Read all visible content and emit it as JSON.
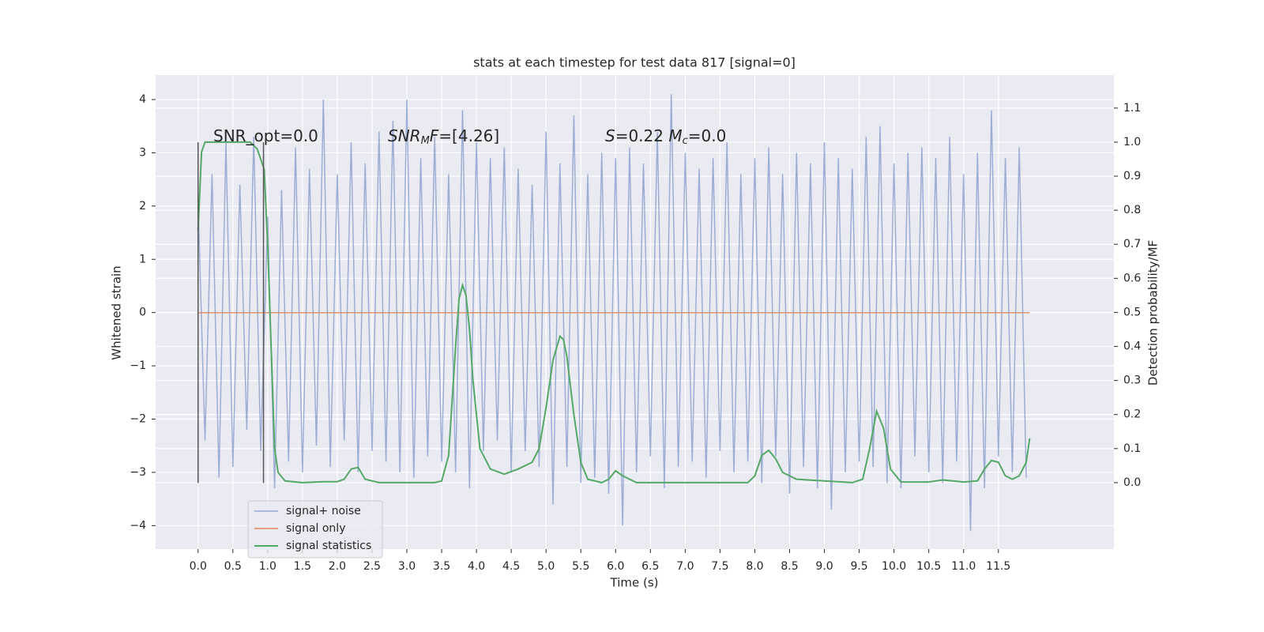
{
  "chart_data": {
    "type": "line",
    "title": "stats at each timestep for test data 817 [signal=0]",
    "xlabel": "Time (s)",
    "ylabel": "Whitened strain",
    "y2label": "Detection probability/MF",
    "xlim": [
      -0.61,
      13.16
    ],
    "ylim": [
      -4.44,
      4.46
    ],
    "y2lim": [
      -0.195,
      1.197
    ],
    "xticks": [
      {
        "value": 0,
        "label": "0.0"
      },
      0.5,
      {
        "value": 1,
        "label": "1.0"
      },
      1.5,
      {
        "value": 2,
        "label": "2.0"
      },
      2.5,
      {
        "value": 3,
        "label": "3.0"
      },
      3.5,
      {
        "value": 4,
        "label": "4.0"
      },
      4.5,
      {
        "value": 5,
        "label": "5.0"
      },
      5.5,
      {
        "value": 6,
        "label": "6.0"
      },
      6.5,
      {
        "value": 7,
        "label": "7.0"
      },
      7.5,
      {
        "value": 8,
        "label": "8.0"
      },
      8.5,
      {
        "value": 9,
        "label": "9.0"
      },
      9.5,
      {
        "value": 10,
        "label": "10.0"
      },
      10.5,
      {
        "value": 11,
        "label": "11.0"
      },
      11.5
    ],
    "yticks": [
      {
        "value": -4,
        "label": "−4"
      },
      {
        "value": -3,
        "label": "−3"
      },
      {
        "value": -2,
        "label": "−2"
      },
      {
        "value": -1,
        "label": "−1"
      },
      0,
      1,
      2,
      3,
      4
    ],
    "y2ticks": [
      {
        "value": 0,
        "label": "0.0"
      },
      0.1,
      0.2,
      0.3,
      0.4,
      0.5,
      0.6,
      0.7,
      0.8,
      0.9,
      {
        "value": 1,
        "label": "1.0"
      },
      1.1
    ],
    "grid": true,
    "legend": "lower left",
    "vlines": {
      "x": [
        0,
        0.94
      ],
      "y": [
        -3.2,
        3.2
      ],
      "color": "#555555"
    },
    "annotations": [
      [
        {
          "text": "SNR_opt=0.0",
          "style": "normal"
        }
      ],
      [
        {
          "text": "SNR",
          "style": "italic"
        },
        {
          "text": "M",
          "style": "sub"
        },
        {
          "text": "F",
          "style": "italic"
        },
        {
          "text": "=[4.26]",
          "style": "normal"
        }
      ],
      [
        {
          "text": "S",
          "style": "italic"
        },
        {
          "text": "=0.22   ",
          "style": "normal"
        },
        {
          "text": "M",
          "style": "italic"
        },
        {
          "text": "c",
          "style": "sub"
        },
        {
          "text": "=0.0",
          "style": "normal"
        }
      ]
    ],
    "series": [
      {
        "name": "signal+ noise",
        "color": "#8fa3cf",
        "x": [
          0,
          0.1,
          0.2,
          0.3,
          0.4,
          0.5,
          0.6,
          0.7,
          0.8,
          0.9,
          1,
          1.1,
          1.2,
          1.3,
          1.4,
          1.5,
          1.6,
          1.7,
          1.8,
          1.9,
          2,
          2.1,
          2.2,
          2.3,
          2.4,
          2.5,
          2.6,
          2.7,
          2.8,
          2.9,
          3,
          3.1,
          3.2,
          3.3,
          3.4,
          3.5,
          3.6,
          3.7,
          3.8,
          3.9,
          4,
          4.1,
          4.2,
          4.3,
          4.4,
          4.5,
          4.6,
          4.7,
          4.8,
          4.9,
          5,
          5.1,
          5.2,
          5.3,
          5.4,
          5.5,
          5.6,
          5.7,
          5.8,
          5.9,
          6,
          6.1,
          6.2,
          6.3,
          6.4,
          6.5,
          6.6,
          6.7,
          6.8,
          6.9,
          7,
          7.1,
          7.2,
          7.3,
          7.4,
          7.5,
          7.6,
          7.7,
          7.8,
          7.9,
          8,
          8.1,
          8.2,
          8.3,
          8.4,
          8.5,
          8.6,
          8.7,
          8.8,
          8.9,
          9,
          9.1,
          9.2,
          9.3,
          9.4,
          9.5,
          9.6,
          9.7,
          9.8,
          9.9,
          10,
          10.1,
          10.2,
          10.3,
          10.4,
          10.5,
          10.6,
          10.7,
          10.8,
          10.9,
          11,
          11.1,
          11.2,
          11.3,
          11.4,
          11.5,
          11.6,
          11.7,
          11.8,
          11.9
        ],
        "values": [
          2.1,
          -2.4,
          2.6,
          -3.1,
          3.2,
          -2.9,
          2.4,
          -2.2,
          3.3,
          -2.6,
          1.8,
          -3.3,
          2.3,
          -2.8,
          3.1,
          -3.0,
          2.7,
          -2.5,
          4.0,
          -2.9,
          2.6,
          -2.4,
          3.2,
          -3.0,
          2.8,
          -2.6,
          3.4,
          -2.8,
          3.6,
          -3.0,
          4.0,
          -3.1,
          2.9,
          -2.7,
          3.3,
          -2.8,
          2.6,
          -3.0,
          3.8,
          -3.3,
          3.2,
          -2.6,
          2.9,
          -2.4,
          3.1,
          -3.0,
          2.7,
          -2.6,
          2.4,
          -2.9,
          3.4,
          -3.6,
          2.8,
          -2.9,
          3.7,
          -3.2,
          2.6,
          -3.1,
          3.0,
          -3.4,
          2.9,
          -4.0,
          3.1,
          -3.0,
          2.8,
          -2.7,
          3.4,
          -3.3,
          4.1,
          -2.9,
          3.0,
          -2.8,
          2.7,
          -3.1,
          2.9,
          -2.6,
          3.2,
          -3.0,
          2.6,
          -2.8,
          2.9,
          -3.2,
          3.1,
          -2.7,
          2.6,
          -3.4,
          3.0,
          -2.9,
          2.8,
          -3.3,
          3.2,
          -3.7,
          2.9,
          -3.0,
          2.7,
          -2.8,
          3.3,
          -2.9,
          3.5,
          -3.2,
          2.8,
          -3.3,
          3.0,
          -2.7,
          3.1,
          -3.0,
          2.9,
          -3.2,
          3.3,
          -2.8,
          2.6,
          -4.1,
          3.0,
          -3.3,
          3.8,
          -2.7,
          2.9,
          -3.0,
          3.1,
          -3.1
        ]
      },
      {
        "name": "signal only",
        "color": "#dd8452",
        "x": [
          0,
          11.95
        ],
        "values": [
          0,
          0
        ]
      },
      {
        "name": "signal statistics",
        "color": "#55a868",
        "axis": "y2",
        "x": [
          0,
          0.05,
          0.1,
          0.2,
          0.4,
          0.6,
          0.75,
          0.85,
          0.95,
          1.0,
          1.05,
          1.1,
          1.15,
          1.25,
          1.5,
          1.8,
          2.0,
          2.1,
          2.2,
          2.3,
          2.4,
          2.6,
          3.0,
          3.4,
          3.5,
          3.6,
          3.7,
          3.75,
          3.8,
          3.85,
          3.9,
          3.95,
          4.05,
          4.2,
          4.4,
          4.6,
          4.8,
          4.9,
          5.0,
          5.1,
          5.2,
          5.25,
          5.3,
          5.4,
          5.5,
          5.6,
          5.8,
          5.9,
          6.0,
          6.1,
          6.3,
          7.0,
          7.5,
          7.9,
          8.0,
          8.1,
          8.2,
          8.3,
          8.4,
          8.6,
          9.0,
          9.4,
          9.55,
          9.65,
          9.75,
          9.85,
          9.95,
          10.1,
          10.5,
          10.7,
          11.0,
          11.2,
          11.3,
          11.4,
          11.5,
          11.6,
          11.7,
          11.8,
          11.9,
          11.95
        ],
        "values": [
          0.74,
          0.97,
          1.0,
          1.0,
          1.0,
          1.0,
          1.0,
          0.98,
          0.92,
          0.7,
          0.4,
          0.1,
          0.03,
          0.005,
          0,
          0.003,
          0.003,
          0.01,
          0.04,
          0.045,
          0.01,
          0,
          0,
          0,
          0.005,
          0.08,
          0.4,
          0.54,
          0.58,
          0.55,
          0.45,
          0.3,
          0.1,
          0.04,
          0.025,
          0.04,
          0.06,
          0.1,
          0.22,
          0.36,
          0.43,
          0.42,
          0.37,
          0.2,
          0.06,
          0.01,
          0,
          0.01,
          0.035,
          0.02,
          0,
          0,
          0,
          0,
          0.02,
          0.08,
          0.095,
          0.07,
          0.03,
          0.01,
          0.005,
          0,
          0.01,
          0.1,
          0.21,
          0.16,
          0.04,
          0.002,
          0.002,
          0.008,
          0.002,
          0.005,
          0.04,
          0.065,
          0.06,
          0.02,
          0.01,
          0.02,
          0.06,
          0.13
        ]
      }
    ]
  }
}
